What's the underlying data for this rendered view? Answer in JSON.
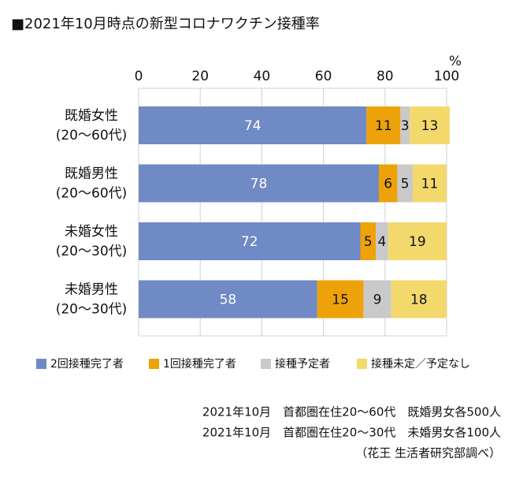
{
  "chart_data": {
    "type": "stacked_bar_horizontal",
    "title": "■2021年10月時点の新型コロナワクチン接種率",
    "x_unit": "%",
    "categories": [
      [
        "既婚女性",
        "(20〜60代)"
      ],
      [
        "既婚男性",
        "(20〜60代)"
      ],
      [
        "未婚女性",
        "(20〜30代)"
      ],
      [
        "未婚男性",
        "(20〜30代)"
      ]
    ],
    "series": [
      {
        "name": "2回接種完了者",
        "color": "#6f8ac4",
        "label_color": "#ffffff",
        "values": [
          74,
          78,
          72,
          58
        ]
      },
      {
        "name": "1回接種完了者",
        "color": "#eea20a",
        "label_color": "#111111",
        "values": [
          11,
          6,
          5,
          15
        ]
      },
      {
        "name": "接種予定者",
        "color": "#c9c9c9",
        "label_color": "#111111",
        "values": [
          3,
          5,
          4,
          9
        ]
      },
      {
        "name": "接種未定／予定なし",
        "color": "#f3d86c",
        "label_color": "#111111",
        "values": [
          13,
          11,
          19,
          18
        ]
      }
    ],
    "xlim": [
      0,
      100
    ],
    "xticks": [
      0,
      20,
      40,
      60,
      80,
      100
    ],
    "grid": true,
    "notes": [
      "2021年10月　首都圏在住20〜60代　既婚男女各500人",
      "2021年10月　首都圏在住20〜30代　未婚男女各100人",
      "（花王 生活者研究部調べ）"
    ]
  }
}
